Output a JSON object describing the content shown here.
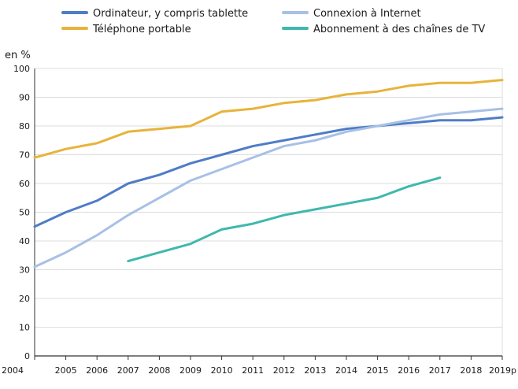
{
  "chart_data": {
    "type": "line",
    "unit_label": "en %",
    "x": [
      "2004",
      "2005",
      "2006",
      "2007",
      "2008",
      "2009",
      "2010",
      "2011",
      "2012",
      "2013",
      "2014",
      "2015",
      "2016",
      "2017",
      "2018",
      "2019p"
    ],
    "ylim": [
      0,
      100
    ],
    "yticks": [
      0,
      10,
      20,
      30,
      40,
      50,
      60,
      70,
      80,
      90,
      100
    ],
    "grid": "horizontal",
    "legend_position": "top",
    "series": [
      {
        "name": "Ordinateur, y compris tablette",
        "color": "#4f7cc6",
        "values": [
          45,
          50,
          54,
          60,
          63,
          67,
          70,
          73,
          75,
          77,
          79,
          80,
          81,
          82,
          82,
          83
        ]
      },
      {
        "name": "Téléphone portable",
        "color": "#e8b33b",
        "values": [
          69,
          72,
          74,
          78,
          79,
          80,
          85,
          86,
          88,
          89,
          91,
          92,
          94,
          95,
          95,
          96
        ]
      },
      {
        "name": "Connexion à Internet",
        "color": "#a7c0e6",
        "values": [
          31,
          36,
          42,
          49,
          55,
          61,
          65,
          69,
          73,
          75,
          78,
          80,
          82,
          84,
          85,
          86
        ]
      },
      {
        "name": "Abonnement à des chaînes de TV",
        "color": "#3fb8ad",
        "values": [
          null,
          null,
          null,
          33,
          36,
          39,
          44,
          46,
          49,
          51,
          53,
          55,
          59,
          62,
          null,
          null
        ]
      }
    ]
  }
}
